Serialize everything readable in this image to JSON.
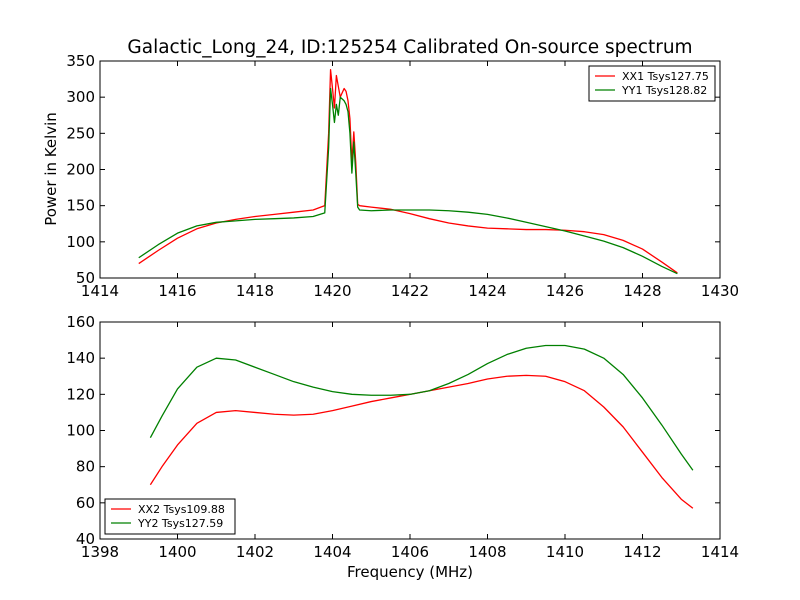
{
  "chart_data": [
    {
      "type": "line",
      "title": "Galactic_Long_24, ID:125254 Calibrated On-source spectrum",
      "xlabel": "",
      "ylabel": "Power in Kelvin",
      "xlim": [
        1414,
        1430
      ],
      "ylim": [
        50,
        350
      ],
      "xticks": [
        1414,
        1416,
        1418,
        1420,
        1422,
        1424,
        1426,
        1428,
        1430
      ],
      "yticks": [
        50,
        100,
        150,
        200,
        250,
        300,
        350
      ],
      "legend_position": "upper-right",
      "series": [
        {
          "name": "XX1 Tsys127.75",
          "color": "#ff0000",
          "x": [
            1415.0,
            1415.5,
            1416.0,
            1416.5,
            1417.0,
            1417.5,
            1418.0,
            1418.5,
            1419.0,
            1419.5,
            1419.8,
            1419.9,
            1419.95,
            1420.0,
            1420.05,
            1420.1,
            1420.15,
            1420.2,
            1420.3,
            1420.35,
            1420.4,
            1420.45,
            1420.5,
            1420.55,
            1420.6,
            1420.65,
            1420.7,
            1421.0,
            1421.5,
            1422.0,
            1422.5,
            1423.0,
            1423.5,
            1424.0,
            1424.5,
            1425.0,
            1425.5,
            1426.0,
            1426.5,
            1427.0,
            1427.5,
            1428.0,
            1428.5,
            1428.9
          ],
          "y": [
            70,
            88,
            105,
            118,
            126,
            131,
            135,
            138,
            141,
            144,
            150,
            250,
            338,
            312,
            285,
            330,
            315,
            300,
            312,
            308,
            295,
            270,
            210,
            252,
            210,
            152,
            150,
            148,
            145,
            139,
            132,
            126,
            122,
            119,
            118,
            117,
            117,
            116,
            114,
            110,
            102,
            90,
            72,
            57
          ]
        },
        {
          "name": "YY1 Tsys128.82",
          "color": "#008000",
          "x": [
            1415.0,
            1415.5,
            1416.0,
            1416.5,
            1417.0,
            1417.5,
            1418.0,
            1418.5,
            1419.0,
            1419.5,
            1419.8,
            1419.9,
            1419.95,
            1420.0,
            1420.05,
            1420.1,
            1420.15,
            1420.2,
            1420.3,
            1420.35,
            1420.4,
            1420.45,
            1420.5,
            1420.55,
            1420.6,
            1420.65,
            1420.7,
            1421.0,
            1421.5,
            1422.0,
            1422.5,
            1423.0,
            1423.5,
            1424.0,
            1424.5,
            1425.0,
            1425.5,
            1426.0,
            1426.5,
            1427.0,
            1427.5,
            1428.0,
            1428.5,
            1428.9
          ],
          "y": [
            78,
            96,
            112,
            122,
            127,
            129,
            131,
            132,
            133,
            135,
            140,
            230,
            312,
            290,
            265,
            290,
            275,
            300,
            295,
            290,
            280,
            250,
            195,
            238,
            195,
            148,
            144,
            143,
            144,
            144,
            144,
            143,
            141,
            138,
            133,
            127,
            121,
            115,
            108,
            101,
            92,
            80,
            66,
            56
          ]
        }
      ]
    },
    {
      "type": "line",
      "title": "",
      "xlabel": "Frequency (MHz)",
      "ylabel": "",
      "xlim": [
        1398,
        1414
      ],
      "ylim": [
        40,
        160
      ],
      "xticks": [
        1398,
        1400,
        1402,
        1404,
        1406,
        1408,
        1410,
        1412,
        1414
      ],
      "yticks": [
        40,
        60,
        80,
        100,
        120,
        140,
        160
      ],
      "legend_position": "lower-left",
      "series": [
        {
          "name": "XX2 Tsys109.88",
          "color": "#ff0000",
          "x": [
            1399.3,
            1399.6,
            1400.0,
            1400.5,
            1401.0,
            1401.5,
            1402.0,
            1402.5,
            1403.0,
            1403.5,
            1404.0,
            1404.5,
            1405.0,
            1405.5,
            1406.0,
            1406.5,
            1407.0,
            1407.5,
            1408.0,
            1408.5,
            1409.0,
            1409.5,
            1410.0,
            1410.5,
            1411.0,
            1411.5,
            1412.0,
            1412.5,
            1413.0,
            1413.3
          ],
          "y": [
            70,
            80,
            92,
            104,
            110,
            111,
            110,
            109,
            108.5,
            109,
            111,
            113.5,
            116,
            118,
            120,
            122,
            124,
            126,
            128.5,
            130,
            130.5,
            130,
            127,
            122,
            113,
            102,
            88,
            74,
            62,
            57
          ]
        },
        {
          "name": "YY2 Tsys127.59",
          "color": "#008000",
          "x": [
            1399.3,
            1399.6,
            1400.0,
            1400.5,
            1401.0,
            1401.5,
            1402.0,
            1402.5,
            1403.0,
            1403.5,
            1404.0,
            1404.5,
            1405.0,
            1405.5,
            1406.0,
            1406.5,
            1407.0,
            1407.5,
            1408.0,
            1408.5,
            1409.0,
            1409.5,
            1410.0,
            1410.5,
            1411.0,
            1411.5,
            1412.0,
            1412.5,
            1413.0,
            1413.3
          ],
          "y": [
            96,
            108,
            123,
            135,
            140,
            139,
            135,
            131,
            127,
            124,
            121.5,
            120,
            119.5,
            119.5,
            120,
            122,
            126,
            131,
            137,
            142,
            145.5,
            147,
            147,
            145,
            140,
            131,
            118,
            103,
            87,
            78
          ]
        }
      ]
    }
  ]
}
